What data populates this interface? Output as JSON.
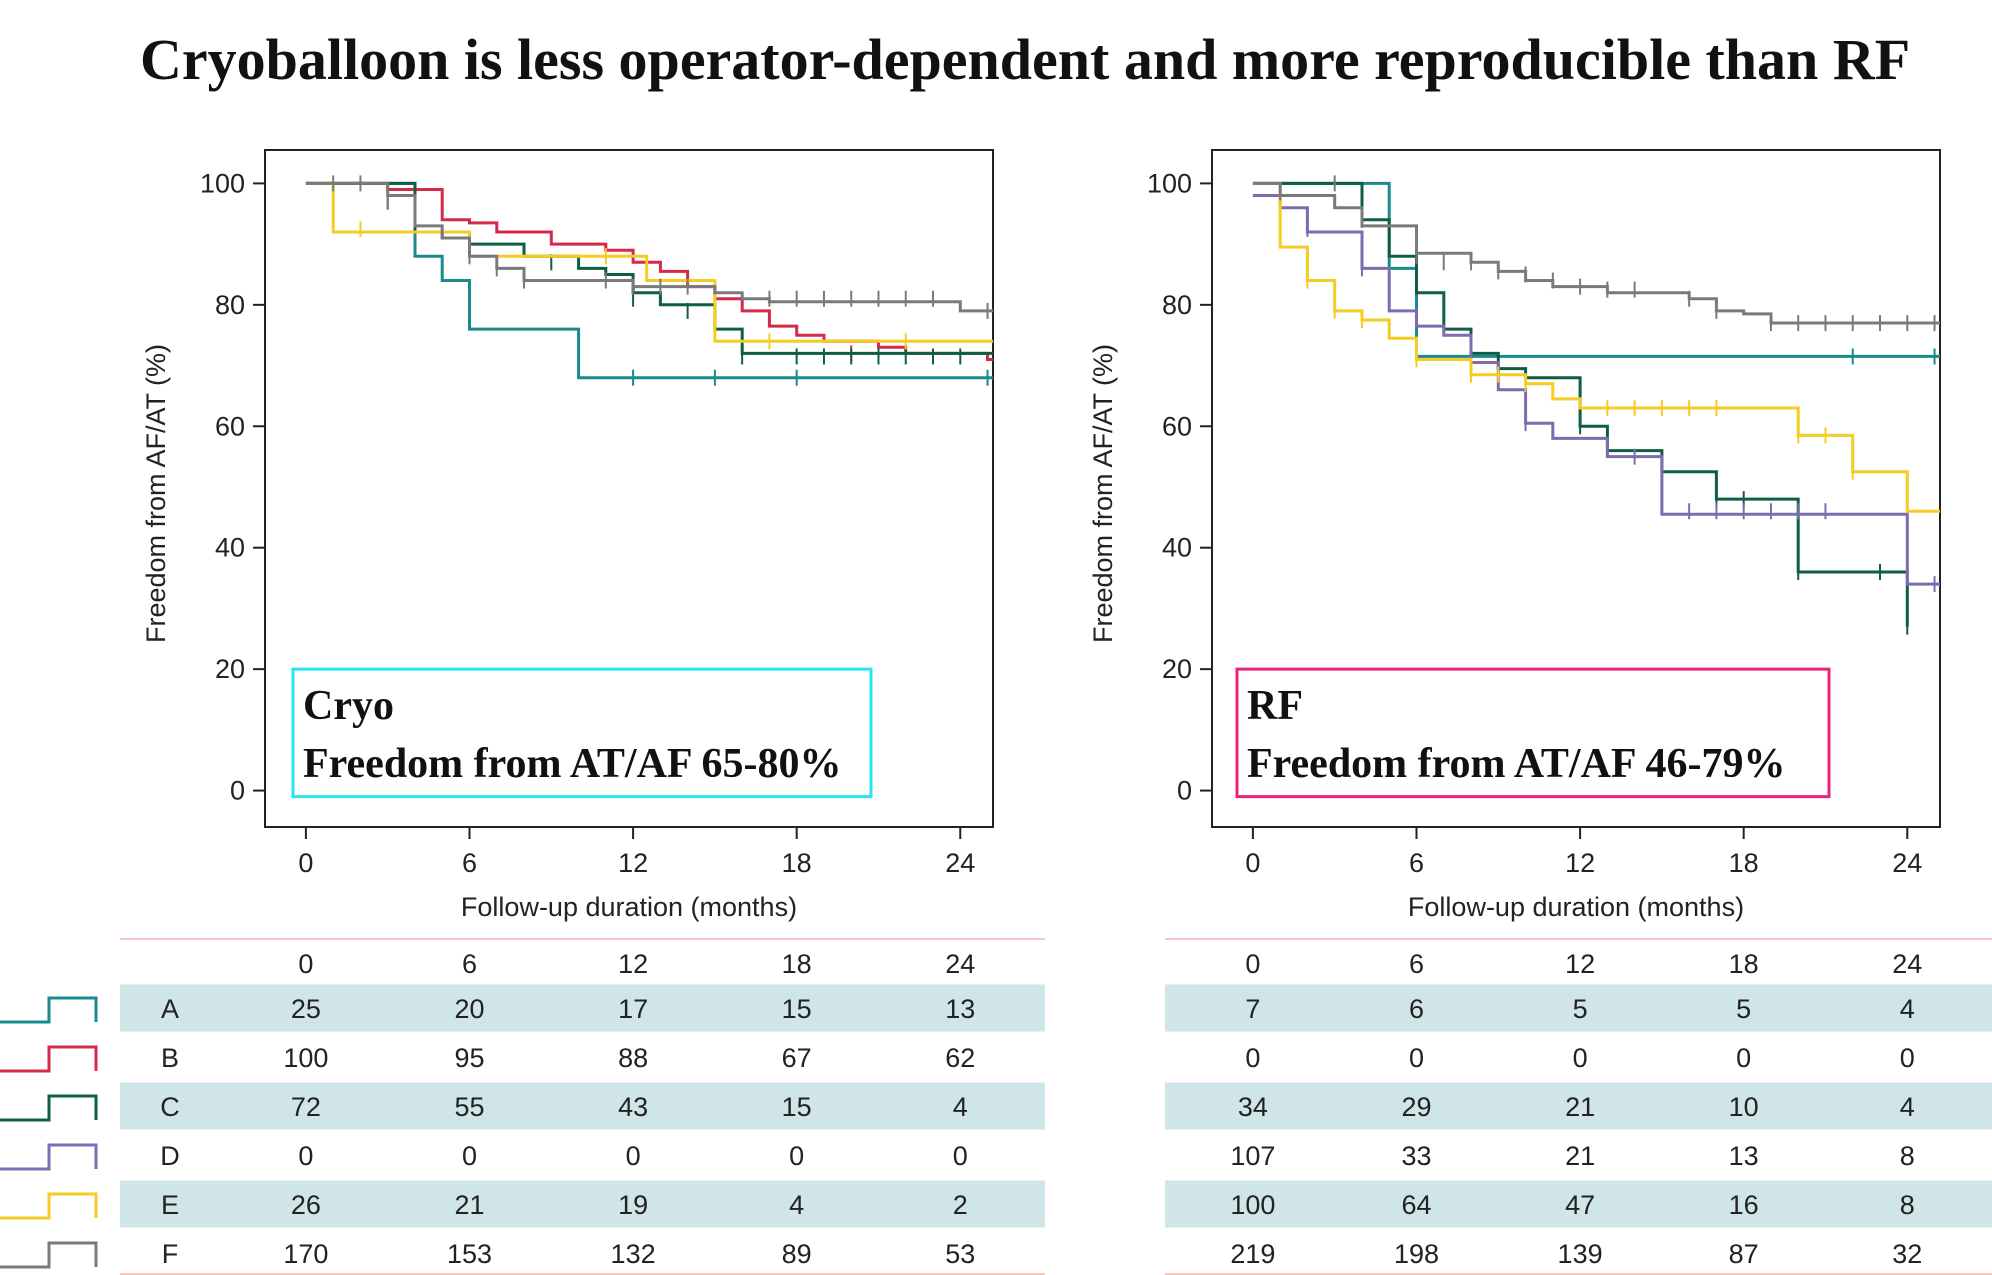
{
  "title": "Cryoballoon is less operator-dependent and more reproducible than RF",
  "colors": {
    "A": "#1a8a8c",
    "B": "#d42a4a",
    "C": "#0f5e44",
    "D": "#7b6db0",
    "E": "#f5cc22",
    "F": "#7a7a7a",
    "cryo_box": "#27e5ee",
    "rf_box": "#e8247a",
    "row_shade": "#cfe5e8",
    "rule": "#f2c8c2"
  },
  "chart_data": [
    {
      "type": "line",
      "title": "",
      "xlabel": "Follow-up duration (months)",
      "ylabel": "Freedom from AF/AT (%)",
      "xlim": [
        -1.5,
        25.2
      ],
      "ylim": [
        -6,
        105.5
      ],
      "x_ticks": [
        0,
        6,
        12,
        18,
        24
      ],
      "y_ticks": [
        0,
        20,
        40,
        60,
        80,
        100
      ],
      "box_title": "Cryo",
      "box_text": "Freedom from AT/AF 65-80%",
      "series": [
        {
          "name": "A",
          "steps": [
            [
              0,
              100
            ],
            [
              4,
              88
            ],
            [
              5,
              84
            ],
            [
              6,
              76
            ],
            [
              10,
              68
            ],
            [
              25.2,
              68
            ]
          ],
          "censors": [
            [
              12,
              68
            ],
            [
              15,
              68
            ],
            [
              18,
              68
            ],
            [
              25,
              68
            ]
          ]
        },
        {
          "name": "B",
          "steps": [
            [
              0,
              100
            ],
            [
              3,
              99
            ],
            [
              5,
              94
            ],
            [
              6,
              93.5
            ],
            [
              7,
              92
            ],
            [
              9,
              90
            ],
            [
              11,
              89
            ],
            [
              12,
              87
            ],
            [
              13,
              85.5
            ],
            [
              14,
              83
            ],
            [
              15,
              81
            ],
            [
              16,
              79
            ],
            [
              17,
              76.5
            ],
            [
              18,
              75
            ],
            [
              19,
              74
            ],
            [
              21,
              73
            ],
            [
              22,
              72
            ],
            [
              25,
              71
            ],
            [
              25.2,
              71
            ]
          ],
          "censors": [
            [
              20,
              72
            ]
          ]
        },
        {
          "name": "C",
          "steps": [
            [
              0,
              100
            ],
            [
              4,
              92
            ],
            [
              5,
              91
            ],
            [
              6,
              90
            ],
            [
              8,
              88
            ],
            [
              10,
              86
            ],
            [
              11,
              85
            ],
            [
              12,
              82
            ],
            [
              13,
              80
            ],
            [
              15,
              76
            ],
            [
              16,
              72
            ],
            [
              25.2,
              72
            ]
          ],
          "censors": [
            [
              3,
              97
            ],
            [
              9,
              87
            ],
            [
              12,
              81
            ],
            [
              14,
              79
            ],
            [
              16,
              71.5
            ],
            [
              18,
              71.5
            ],
            [
              19,
              71.5
            ],
            [
              20,
              71.5
            ],
            [
              21,
              71.5
            ],
            [
              22,
              71.5
            ],
            [
              23,
              71.5
            ],
            [
              24,
              71.5
            ]
          ]
        },
        {
          "name": "E",
          "steps": [
            [
              0,
              100
            ],
            [
              1,
              92
            ],
            [
              4,
              92
            ],
            [
              6,
              88
            ],
            [
              12,
              88
            ],
            [
              12.5,
              84
            ],
            [
              14.7,
              84
            ],
            [
              15,
              74
            ],
            [
              25.2,
              74
            ]
          ],
          "censors": [
            [
              2,
              92.5
            ],
            [
              6,
              88
            ],
            [
              11,
              88
            ],
            [
              17,
              74
            ],
            [
              22,
              74
            ]
          ]
        },
        {
          "name": "F",
          "steps": [
            [
              0,
              100
            ],
            [
              3,
              98
            ],
            [
              4,
              93
            ],
            [
              5,
              91
            ],
            [
              6,
              88
            ],
            [
              7,
              86
            ],
            [
              8,
              84
            ],
            [
              12,
              83
            ],
            [
              15,
              82
            ],
            [
              16,
              81
            ],
            [
              17,
              80.5
            ],
            [
              24,
              79
            ],
            [
              25.2,
              79
            ]
          ],
          "censors": [
            [
              1,
              100
            ],
            [
              2,
              100
            ],
            [
              3,
              97
            ],
            [
              6,
              88
            ],
            [
              7,
              86
            ],
            [
              8,
              84
            ],
            [
              11,
              84
            ],
            [
              12,
              83
            ],
            [
              13,
              83
            ],
            [
              14,
              83
            ],
            [
              17,
              81
            ],
            [
              18,
              81
            ],
            [
              19,
              81
            ],
            [
              20,
              81
            ],
            [
              21,
              81
            ],
            [
              22,
              81
            ],
            [
              23,
              81
            ],
            [
              25,
              79
            ]
          ]
        }
      ]
    },
    {
      "type": "line",
      "title": "",
      "xlabel": "Follow-up duration (months)",
      "ylabel": "Freedom from AF/AT (%)",
      "xlim": [
        -1.5,
        25.2
      ],
      "ylim": [
        -6,
        105.5
      ],
      "x_ticks": [
        0,
        6,
        12,
        18,
        24
      ],
      "y_ticks": [
        0,
        20,
        40,
        60,
        80,
        100
      ],
      "box_title": "RF",
      "box_text": "Freedom from AT/AF 46-79%",
      "series": [
        {
          "name": "A",
          "steps": [
            [
              0,
              100
            ],
            [
              5,
              86
            ],
            [
              6,
              71.5
            ],
            [
              25.2,
              71.5
            ]
          ],
          "censors": [
            [
              22,
              71.5
            ],
            [
              25,
              71.5
            ]
          ]
        },
        {
          "name": "C",
          "steps": [
            [
              0,
              100
            ],
            [
              4,
              94
            ],
            [
              5,
              88
            ],
            [
              6,
              82
            ],
            [
              7,
              76
            ],
            [
              8,
              72
            ],
            [
              9,
              69.5
            ],
            [
              10,
              68
            ],
            [
              12,
              60
            ],
            [
              13,
              56
            ],
            [
              15,
              52.5
            ],
            [
              17,
              48
            ],
            [
              20,
              36
            ],
            [
              24,
              27
            ]
          ],
          "censors": [
            [
              4,
              94
            ],
            [
              8,
              71.5
            ],
            [
              12,
              60
            ],
            [
              17,
              48
            ],
            [
              18,
              48
            ],
            [
              20,
              36
            ],
            [
              23,
              36
            ],
            [
              24,
              27
            ]
          ]
        },
        {
          "name": "D",
          "steps": [
            [
              0,
              98
            ],
            [
              1,
              96
            ],
            [
              2,
              92
            ],
            [
              4,
              86
            ],
            [
              5,
              79
            ],
            [
              6,
              76.5
            ],
            [
              7,
              75
            ],
            [
              8,
              70.5
            ],
            [
              9,
              66
            ],
            [
              10,
              60.5
            ],
            [
              11,
              58
            ],
            [
              13,
              55
            ],
            [
              15,
              45.5
            ],
            [
              24,
              34
            ],
            [
              25.2,
              34
            ]
          ],
          "censors": [
            [
              2,
              92.5
            ],
            [
              4,
              86
            ],
            [
              10,
              60.5
            ],
            [
              14,
              55
            ],
            [
              16,
              46
            ],
            [
              17,
              46
            ],
            [
              18,
              46
            ],
            [
              19,
              46
            ],
            [
              20,
              46
            ],
            [
              21,
              46
            ],
            [
              25,
              34
            ]
          ]
        },
        {
          "name": "E",
          "steps": [
            [
              0,
              100
            ],
            [
              1,
              89.5
            ],
            [
              2,
              84
            ],
            [
              3,
              79
            ],
            [
              4,
              77.5
            ],
            [
              5,
              74.5
            ],
            [
              6,
              71
            ],
            [
              8,
              68.5
            ],
            [
              10,
              67
            ],
            [
              11,
              64.5
            ],
            [
              12,
              63
            ],
            [
              16,
              63
            ],
            [
              20,
              58.5
            ],
            [
              22,
              52.5
            ],
            [
              24,
              46
            ],
            [
              25.2,
              46
            ]
          ],
          "censors": [
            [
              2,
              84
            ],
            [
              3,
              79
            ],
            [
              4,
              77.5
            ],
            [
              6,
              71
            ],
            [
              8,
              68.5
            ],
            [
              9,
              68.5
            ],
            [
              10,
              67
            ],
            [
              13,
              63
            ],
            [
              14,
              63
            ],
            [
              15,
              63
            ],
            [
              16,
              63
            ],
            [
              17,
              63
            ],
            [
              20,
              58.5
            ],
            [
              21,
              58.5
            ],
            [
              22,
              52.5
            ]
          ]
        },
        {
          "name": "F",
          "steps": [
            [
              0,
              100
            ],
            [
              1,
              98
            ],
            [
              3,
              96
            ],
            [
              4,
              93
            ],
            [
              6,
              88.5
            ],
            [
              8,
              87
            ],
            [
              9,
              85.5
            ],
            [
              10,
              84
            ],
            [
              11,
              83
            ],
            [
              13,
              82
            ],
            [
              16,
              81
            ],
            [
              17,
              79
            ],
            [
              18,
              78.5
            ],
            [
              19,
              77
            ],
            [
              25.2,
              77
            ]
          ],
          "censors": [
            [
              1,
              98.5
            ],
            [
              3,
              100
            ],
            [
              4,
              94
            ],
            [
              6,
              88
            ],
            [
              7,
              87
            ],
            [
              8,
              87
            ],
            [
              9,
              85.5
            ],
            [
              10,
              85
            ],
            [
              11,
              84
            ],
            [
              12,
              83
            ],
            [
              13,
              82.5
            ],
            [
              14,
              82.5
            ],
            [
              16,
              81
            ],
            [
              17,
              79
            ],
            [
              19,
              77
            ],
            [
              20,
              77
            ],
            [
              21,
              77
            ],
            [
              22,
              77
            ],
            [
              23,
              77
            ],
            [
              24,
              77
            ],
            [
              25,
              77
            ]
          ]
        }
      ]
    }
  ],
  "table": {
    "times": [
      "0",
      "6",
      "12",
      "18",
      "24"
    ],
    "rows": [
      {
        "label": "A",
        "cryo": [
          "25",
          "20",
          "17",
          "15",
          "13"
        ],
        "rf": [
          "7",
          "6",
          "5",
          "5",
          "4"
        ]
      },
      {
        "label": "B",
        "cryo": [
          "100",
          "95",
          "88",
          "67",
          "62"
        ],
        "rf": [
          "0",
          "0",
          "0",
          "0",
          "0"
        ]
      },
      {
        "label": "C",
        "cryo": [
          "72",
          "55",
          "43",
          "15",
          "4"
        ],
        "rf": [
          "34",
          "29",
          "21",
          "10",
          "4"
        ]
      },
      {
        "label": "D",
        "cryo": [
          "0",
          "0",
          "0",
          "0",
          "0"
        ],
        "rf": [
          "107",
          "33",
          "21",
          "13",
          "8"
        ]
      },
      {
        "label": "E",
        "cryo": [
          "26",
          "21",
          "19",
          "4",
          "2"
        ],
        "rf": [
          "100",
          "64",
          "47",
          "16",
          "8"
        ]
      },
      {
        "label": "F",
        "cryo": [
          "170",
          "153",
          "132",
          "89",
          "53"
        ],
        "rf": [
          "219",
          "198",
          "139",
          "87",
          "32"
        ]
      }
    ]
  }
}
